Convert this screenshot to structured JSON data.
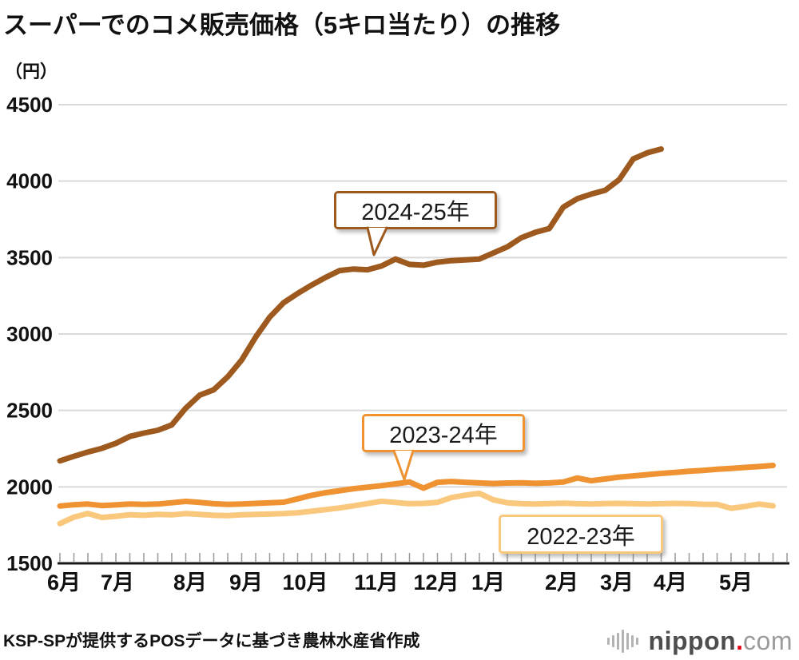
{
  "title": "スーパーでのコメ販売価格（5キロ当たり）の推移",
  "y_axis_unit": "（円）",
  "footer": {
    "source": "KSP-SPが提供するPOSデータに基づき農林水産省作成"
  },
  "logo": {
    "main": "nippon",
    "dot": ".",
    "tld": "com"
  },
  "colors": {
    "series_2024_25": "#9E5A1E",
    "series_2023_24": "#EF9231",
    "series_2022_23": "#FAC87C",
    "gridline": "#D9D9D9",
    "axis": "#1A1A1A",
    "tick": "#999999"
  },
  "chart_data": {
    "type": "line",
    "title": "スーパーでのコメ販売価格（5キロ当たり）の推移",
    "ylabel": "（円）",
    "ylim": [
      1500,
      4500
    ],
    "y_ticks": [
      1500,
      2000,
      2500,
      3000,
      3500,
      4000,
      4500
    ],
    "grid": true,
    "x_unit": "week (June through May, weekly POS data)",
    "x_month_labels": [
      "6月",
      "7月",
      "8月",
      "9月",
      "10月",
      "11月",
      "12月",
      "1月",
      "2月",
      "3月",
      "4月",
      "5月"
    ],
    "series": [
      {
        "name": "2022-23年",
        "color": "#FAC87C",
        "values": [
          1760,
          1802,
          1826,
          1800,
          1808,
          1818,
          1814,
          1820,
          1817,
          1825,
          1820,
          1814,
          1812,
          1818,
          1820,
          1822,
          1825,
          1831,
          1841,
          1851,
          1862,
          1876,
          1891,
          1906,
          1898,
          1890,
          1892,
          1899,
          1930,
          1946,
          1958,
          1915,
          1896,
          1890,
          1888,
          1891,
          1893,
          1890,
          1888,
          1891,
          1892,
          1890,
          1888,
          1890,
          1892,
          1890,
          1886,
          1885,
          1860,
          1872,
          1888,
          1876
        ]
      },
      {
        "name": "2023-24年",
        "color": "#EF9231",
        "values": [
          1875,
          1883,
          1888,
          1878,
          1882,
          1888,
          1885,
          1888,
          1896,
          1905,
          1898,
          1890,
          1885,
          1888,
          1892,
          1896,
          1900,
          1922,
          1945,
          1962,
          1975,
          1988,
          1998,
          2008,
          2020,
          2032,
          1992,
          2030,
          2035,
          2030,
          2026,
          2022,
          2025,
          2027,
          2023,
          2026,
          2032,
          2058,
          2040,
          2052,
          2064,
          2072,
          2080,
          2088,
          2095,
          2102,
          2108,
          2115,
          2121,
          2127,
          2133,
          2140
        ]
      },
      {
        "name": "2024-25年",
        "color": "#9E5A1E",
        "values": [
          2170,
          2200,
          2228,
          2252,
          2285,
          2330,
          2352,
          2370,
          2405,
          2515,
          2600,
          2635,
          2720,
          2830,
          2980,
          3110,
          3205,
          3265,
          3320,
          3370,
          3415,
          3425,
          3420,
          3445,
          3490,
          3455,
          3450,
          3470,
          3480,
          3485,
          3490,
          3530,
          3570,
          3630,
          3665,
          3690,
          3830,
          3885,
          3915,
          3940,
          4010,
          4145,
          4185,
          4210
        ]
      }
    ],
    "annotations": [
      {
        "label": "2024-25年",
        "style": "callout",
        "points_to": "2024-25 line near 3500円, mid November"
      },
      {
        "label": "2023-24年",
        "style": "callout",
        "points_to": "2023-24 line near 2000円, early December"
      },
      {
        "label": "2022-23年",
        "style": "plain-box"
      }
    ]
  }
}
